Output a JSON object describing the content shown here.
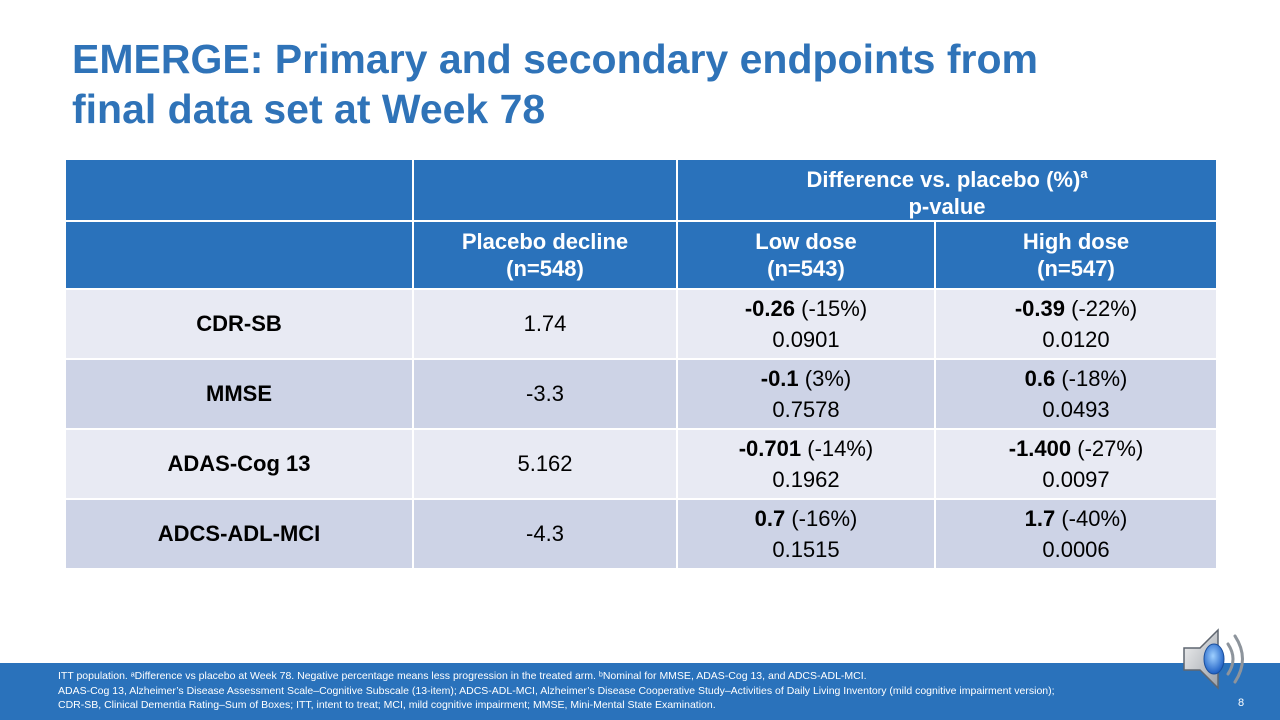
{
  "title": {
    "line1": "EMERGE: Primary and secondary endpoints from",
    "line2": "final data set at Week 78"
  },
  "table": {
    "group_header": {
      "line1": "Difference vs. placebo (%)",
      "line1_sup": "a",
      "line2": "p-value"
    },
    "columns": {
      "placebo": {
        "label": "Placebo decline",
        "n": "(n=548)"
      },
      "low": {
        "label": "Low dose",
        "n": "(n=543)"
      },
      "high": {
        "label": "High dose",
        "n": "(n=547)"
      }
    },
    "rows": [
      {
        "endpoint": "CDR-SB",
        "placebo": "1.74",
        "low": {
          "diff": "-0.26",
          "pct": " (-15%)",
          "p": "0.0901"
        },
        "high": {
          "diff": "-0.39",
          "pct": " (-22%)",
          "p": "0.0120"
        }
      },
      {
        "endpoint": "MMSE",
        "placebo": "-3.3",
        "low": {
          "diff": "-0.1",
          "pct": " (3%)",
          "p": "0.7578"
        },
        "high": {
          "diff": "0.6",
          "pct": " (-18%)",
          "p": "0.0493"
        }
      },
      {
        "endpoint": "ADAS-Cog 13",
        "placebo": "5.162",
        "low": {
          "diff": "-0.701",
          "pct": " (-14%)",
          "p": "0.1962"
        },
        "high": {
          "diff": "-1.400",
          "pct": " (-27%)",
          "p": "0.0097"
        }
      },
      {
        "endpoint": "ADCS-ADL-MCI",
        "placebo": "-4.3",
        "low": {
          "diff": "0.7",
          "pct": " (-16%)",
          "p": "0.1515"
        },
        "high": {
          "diff": "1.7",
          "pct": " (-40%)",
          "p": "0.0006"
        }
      }
    ]
  },
  "footer": {
    "line1": "ITT population. ᵃDifference vs placebo at Week 78. Negative percentage means less progression in the treated arm. ᵇNominal for MMSE, ADAS-Cog 13, and ADCS-ADL-MCI.",
    "line2": "ADAS-Cog 13, Alzheimer’s Disease Assessment Scale–Cognitive Subscale (13-item); ADCS-ADL-MCI, Alzheimer’s Disease Cooperative Study–Activities of Daily Living Inventory (mild cognitive impairment version);",
    "line3": "CDR-SB, Clinical Dementia Rating–Sum of Boxes; ITT, intent to treat; MCI, mild cognitive impairment; MMSE, Mini-Mental State Examination.",
    "page_number": "8"
  },
  "icons": {
    "audio": "speaker-icon"
  },
  "colors": {
    "title": "#2f73b8",
    "header_bg": "#2a72bb",
    "row_light": "#e8eaf3",
    "row_dark": "#cdd3e6"
  }
}
